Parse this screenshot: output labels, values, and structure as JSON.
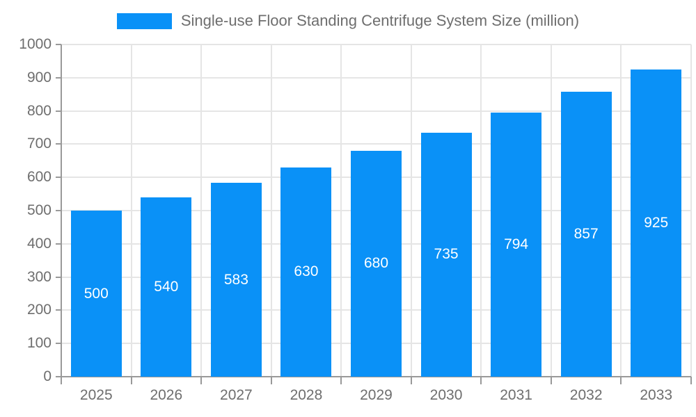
{
  "legend": {
    "label": "Single-use Floor Standing Centrifuge System Size (million)"
  },
  "colors": {
    "bar": "#0a91f7",
    "bar_label": "#ffffff",
    "axis_text": "#6e6e6e",
    "legend_text": "#6e6e6e",
    "axis_line": "#999999",
    "grid_line": "#e5e5e5",
    "background": "#ffffff"
  },
  "chart_data": {
    "type": "bar",
    "title": "Single-use Floor Standing Centrifuge System Size (million)",
    "categories": [
      "2025",
      "2026",
      "2027",
      "2028",
      "2029",
      "2030",
      "2031",
      "2032",
      "2033"
    ],
    "values": [
      500,
      540,
      583,
      630,
      680,
      735,
      794,
      857,
      925
    ],
    "xlabel": "",
    "ylabel": "",
    "ylim": [
      0,
      1000
    ],
    "ytick_step": 100,
    "grid": true,
    "legend_position": "top",
    "value_label_position": "inside-center"
  }
}
